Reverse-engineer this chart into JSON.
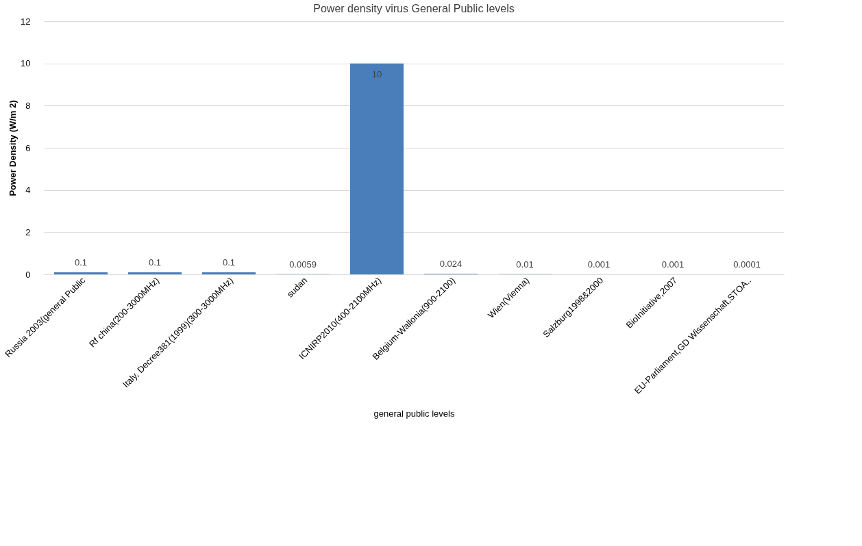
{
  "chart_data": {
    "type": "bar",
    "title": "Power density virus General Public  levels",
    "xlabel": "general public levels",
    "ylabel": "Power Density (W/m 2)",
    "categories": [
      "Russia 2003(general Public",
      "Rf china(200-3000MHz)",
      "Italy, Decree381(1999)(300-3000MHz)",
      "sudan",
      "ICNIRP2010(400-2100MHz)",
      "Belgium-Wallonia(900-2100)",
      "Wien(Vienna)",
      "Salzburg1998&2000",
      "BioInitiative,2007",
      "EU-Parliament,GD Wissenschaft,STOA.."
    ],
    "values": [
      0.1,
      0.1,
      0.1,
      0.0059,
      10,
      0.024,
      0.01,
      0.001,
      0.001,
      0.0001
    ],
    "color": "#4a7ebb",
    "ylim": [
      0,
      12
    ],
    "yticks": [
      0,
      2,
      4,
      6,
      8,
      10,
      12
    ],
    "grid": "y",
    "data_labels": true
  }
}
